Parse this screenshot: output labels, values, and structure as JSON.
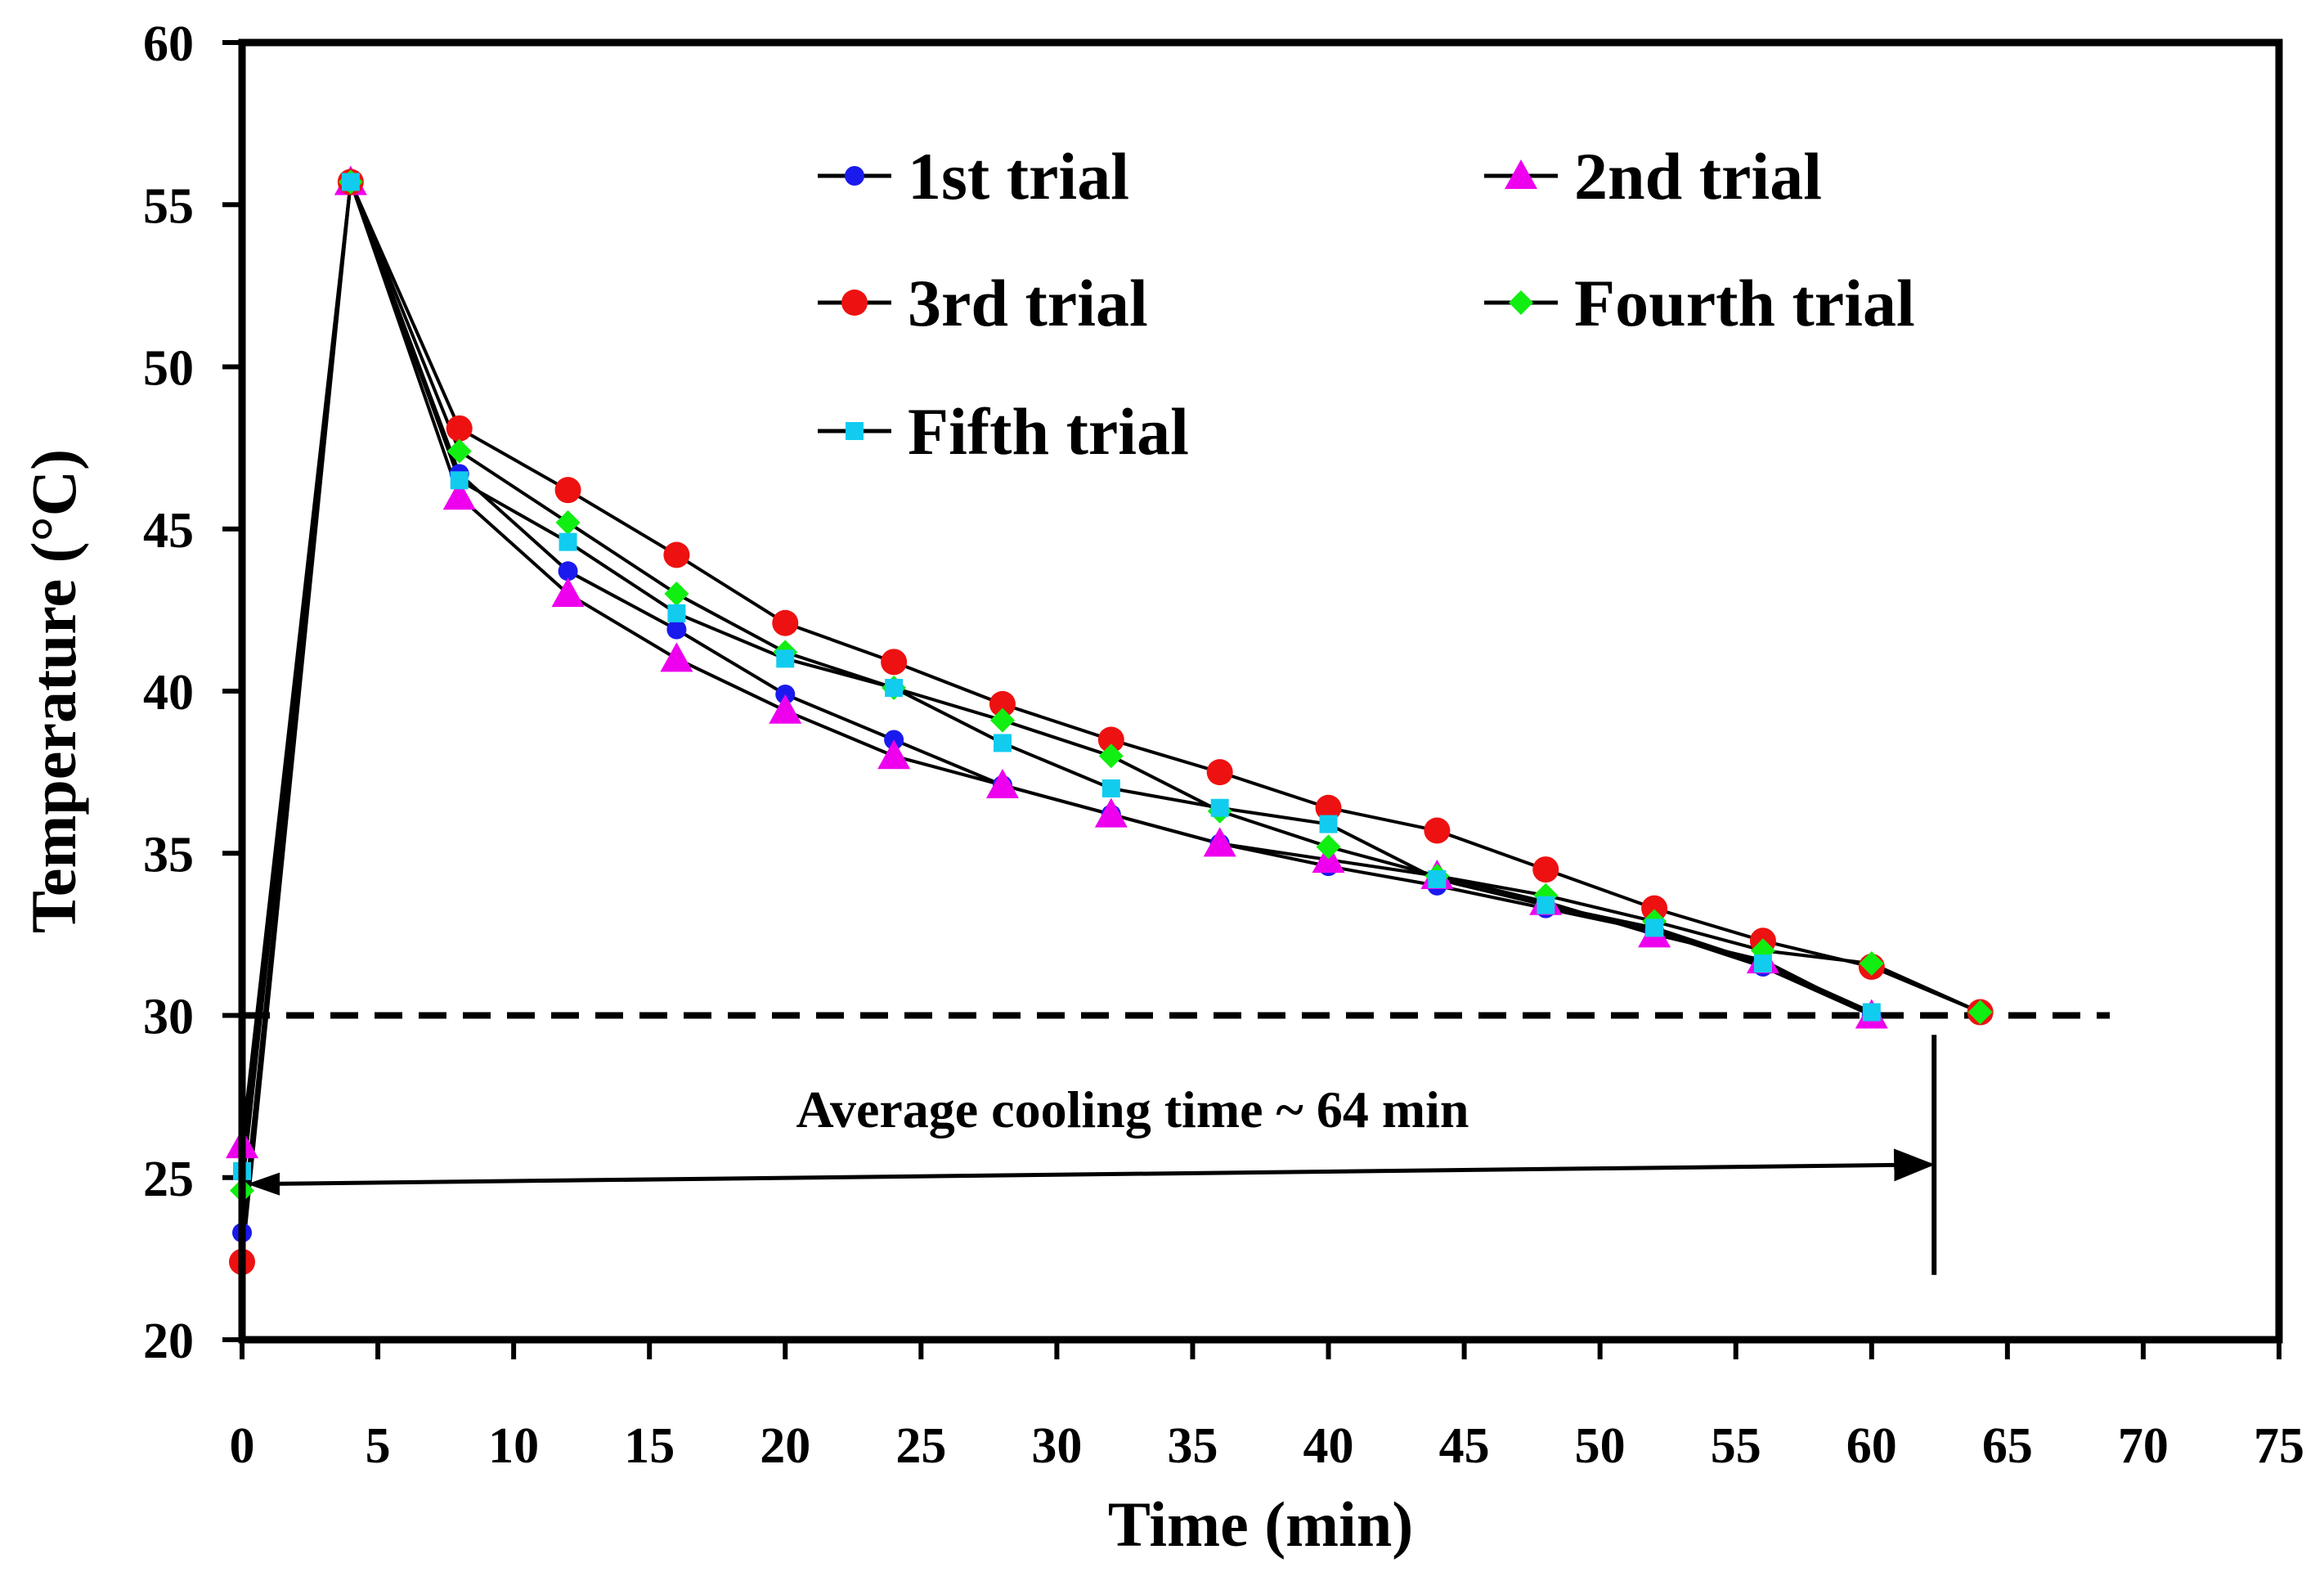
{
  "chart_data": {
    "type": "line",
    "xlabel": "Time (min)",
    "ylabel": "Temperature (°C)",
    "xlim": [
      0,
      75
    ],
    "ylim": [
      20,
      60
    ],
    "xticks": [
      0,
      5,
      10,
      15,
      20,
      25,
      30,
      35,
      40,
      45,
      50,
      55,
      60,
      65,
      70,
      75
    ],
    "yticks": [
      20,
      25,
      30,
      35,
      40,
      45,
      50,
      55,
      60
    ],
    "x_tick_labels": [
      "0",
      "5",
      "10",
      "15",
      "20",
      "25",
      "30",
      "35",
      "40",
      "45",
      "50",
      "55",
      "60",
      "65",
      "70",
      "75"
    ],
    "y_tick_labels": [
      "20",
      "25",
      "30",
      "35",
      "40",
      "45",
      "50",
      "55",
      "60"
    ],
    "legend_position": "top",
    "grid": false,
    "series": [
      {
        "name": "1st trial",
        "marker": "circle",
        "color": "#1a1aee",
        "x": [
          0,
          4,
          8,
          12,
          16,
          20,
          24,
          28,
          32,
          36,
          40,
          44,
          48,
          52,
          56,
          60
        ],
        "y": [
          23.3,
          55.7,
          46.7,
          43.7,
          41.9,
          39.9,
          38.5,
          37.1,
          36.2,
          35.3,
          34.6,
          34.0,
          33.3,
          32.6,
          31.5,
          30.0
        ]
      },
      {
        "name": "2nd trial",
        "marker": "triangle",
        "color": "#ee00ee",
        "x": [
          0,
          4,
          8,
          12,
          16,
          20,
          24,
          28,
          32,
          36,
          40,
          44,
          48,
          52,
          56,
          60
        ],
        "y": [
          26.0,
          55.7,
          46.0,
          43.0,
          41.0,
          39.4,
          38.0,
          37.1,
          36.2,
          35.3,
          34.8,
          34.3,
          33.5,
          32.5,
          31.7,
          30.0
        ]
      },
      {
        "name": "3rd trial",
        "marker": "circle-large",
        "color": "#ee1111",
        "x": [
          0,
          4,
          8,
          12,
          16,
          20,
          24,
          28,
          32,
          36,
          40,
          44,
          48,
          52,
          56,
          60,
          64
        ],
        "y": [
          22.4,
          55.7,
          48.1,
          46.2,
          44.2,
          42.1,
          40.9,
          39.6,
          38.5,
          37.5,
          36.4,
          35.7,
          34.5,
          33.3,
          32.3,
          31.5,
          30.1
        ]
      },
      {
        "name": "Fourth trial",
        "marker": "diamond",
        "color": "#11ee11",
        "x": [
          0,
          4,
          8,
          12,
          16,
          20,
          24,
          28,
          32,
          36,
          40,
          44,
          48,
          52,
          56,
          60,
          64
        ],
        "y": [
          24.6,
          55.7,
          47.4,
          45.2,
          43.0,
          41.2,
          40.1,
          39.1,
          38.0,
          36.3,
          35.2,
          34.3,
          33.7,
          32.9,
          32.0,
          31.6,
          30.1
        ]
      },
      {
        "name": "Fifth trial",
        "marker": "square",
        "color": "#11ccee",
        "x": [
          0,
          4,
          8,
          12,
          16,
          20,
          24,
          28,
          32,
          36,
          40,
          44,
          48,
          52,
          56,
          60
        ],
        "y": [
          25.2,
          55.7,
          46.5,
          44.6,
          42.4,
          41.0,
          40.1,
          38.4,
          37.0,
          36.4,
          35.9,
          34.2,
          33.4,
          32.7,
          31.6,
          30.1
        ]
      }
    ],
    "annotations": {
      "reference_line_y": 30,
      "cooling_time_label": "Average cooling time ~ 64 min",
      "arrow_from": {
        "x": 0,
        "y": 24.8
      },
      "arrow_to": {
        "x": 62.3,
        "y": 25.4
      },
      "marker_line_x": 62.3,
      "marker_line_y": [
        22,
        29.4
      ]
    }
  }
}
